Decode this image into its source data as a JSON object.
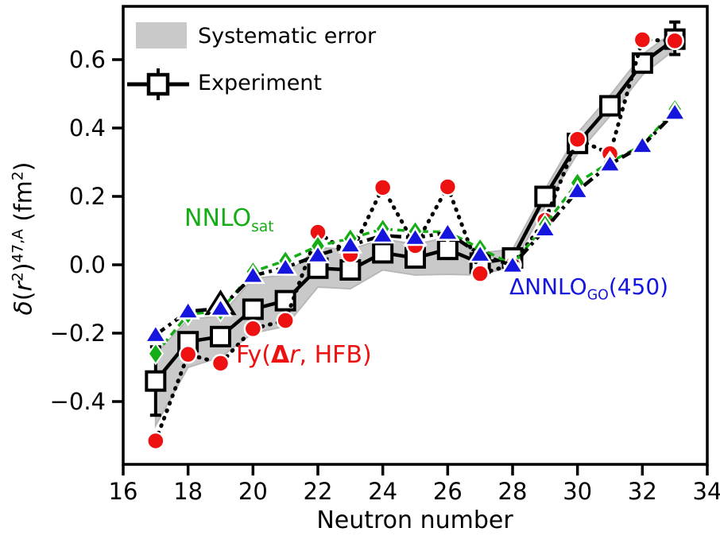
{
  "figure": {
    "colors": {
      "experiment": "#000000",
      "band": "#c9c9c9",
      "band_edge": "#b8b8b8",
      "nnlo_sat": "#15ad15",
      "dnnlo_go": "#1515dd",
      "fy": "#ee1111",
      "axis": "#000000",
      "background": "#ffffff"
    }
  },
  "legend": {
    "systematic_label": "Systematic error",
    "experiment_label": "Experiment"
  },
  "labels": {
    "nnlo": {
      "parts": [
        {
          "t": "NNLO"
        },
        {
          "t": "sat",
          "sub": 1
        }
      ]
    },
    "fy": {
      "parts": [
        {
          "t": "Fy("
        },
        {
          "t": "Δ",
          "b": 1
        },
        {
          "t": "r",
          "i": 1
        },
        {
          "t": ", HFB)"
        }
      ]
    },
    "go": {
      "parts": [
        {
          "t": "ΔNNLO"
        },
        {
          "t": "GO",
          "sub": 1
        },
        {
          "t": "(450)"
        }
      ]
    },
    "ylabel": {
      "parts": [
        {
          "t": "δ",
          "i": 1
        },
        {
          "t": "("
        },
        {
          "t": "r",
          "i": 1
        },
        {
          "t": "2",
          "sup": 1
        },
        {
          "t": ")"
        },
        {
          "t": "47,A",
          "sup": 1
        },
        {
          "t": " (fm"
        },
        {
          "t": "2",
          "sup": 1
        },
        {
          "t": ")"
        }
      ]
    },
    "xlabel": "Neutron number"
  },
  "axes": {
    "xticks": [
      {
        "v": 16,
        "label": "16"
      },
      {
        "v": 18,
        "label": "18"
      },
      {
        "v": 20,
        "label": "20"
      },
      {
        "v": 22,
        "label": "22"
      },
      {
        "v": 24,
        "label": "24"
      },
      {
        "v": 26,
        "label": "26"
      },
      {
        "v": 28,
        "label": "28"
      },
      {
        "v": 30,
        "label": "30"
      },
      {
        "v": 32,
        "label": "32"
      },
      {
        "v": 34,
        "label": "34"
      }
    ],
    "yticks": [
      {
        "v": -0.4,
        "label": "−0.4"
      },
      {
        "v": -0.2,
        "label": "−0.2"
      },
      {
        "v": 0.0,
        "label": "0.0"
      },
      {
        "v": 0.2,
        "label": "0.2"
      },
      {
        "v": 0.4,
        "label": "0.4"
      },
      {
        "v": 0.6,
        "label": "0.6"
      }
    ],
    "xlim": [
      16,
      34
    ],
    "ylim": [
      -0.584,
      0.756
    ]
  },
  "chart_data": {
    "type": "line",
    "title": "",
    "xlabel": "Neutron number",
    "ylabel": "delta<r2>^{47,A} (fm^2)",
    "x": [
      17,
      18,
      19,
      20,
      21,
      22,
      23,
      24,
      25,
      26,
      27,
      28,
      29,
      30,
      31,
      32,
      33
    ],
    "series": [
      {
        "name": "Experiment",
        "marker": "open-square",
        "line": "solid-black",
        "values": [
          -0.34,
          -0.225,
          -0.21,
          -0.13,
          -0.105,
          -0.01,
          -0.015,
          0.035,
          0.02,
          0.045,
          0.005,
          0.02,
          0.2,
          0.355,
          0.465,
          0.59,
          0.66
        ]
      },
      {
        "name": "NNLO_sat",
        "marker": "green-diamond",
        "line": "dashed-green",
        "values": [
          -0.26,
          -0.145,
          -0.135,
          -0.02,
          0.012,
          0.055,
          0.077,
          0.105,
          0.098,
          0.096,
          0.048,
          0.0,
          0.118,
          0.24,
          0.3,
          0.35,
          0.455
        ]
      },
      {
        "name": "DeltaNNLO_GO(450)",
        "marker": "blue-triangle",
        "line": "dashdot-black",
        "values": [
          -0.205,
          -0.136,
          -0.128,
          -0.032,
          -0.008,
          0.028,
          0.057,
          0.086,
          0.079,
          0.094,
          0.03,
          -0.002,
          0.104,
          0.216,
          0.294,
          0.348,
          0.445
        ]
      },
      {
        "name": "Fy(Delta r, HFB)",
        "marker": "red-circle",
        "line": "dotted-black",
        "values": [
          -0.515,
          -0.262,
          -0.288,
          -0.187,
          -0.163,
          0.095,
          0.03,
          0.226,
          0.056,
          0.228,
          -0.026,
          0.0,
          0.13,
          0.367,
          0.325,
          0.658,
          0.655
        ]
      }
    ],
    "systematic_band": {
      "upper": [
        -0.26,
        -0.16,
        -0.15,
        -0.04,
        -0.03,
        0.05,
        0.045,
        0.075,
        0.06,
        0.08,
        0.035,
        0.045,
        0.22,
        0.385,
        0.495,
        0.615,
        0.685
      ],
      "lower": [
        -0.47,
        -0.3,
        -0.27,
        -0.2,
        -0.18,
        -0.065,
        -0.07,
        -0.015,
        -0.03,
        -0.028,
        -0.03,
        -0.005,
        0.17,
        0.325,
        0.435,
        0.555,
        0.63
      ]
    },
    "errorbars": [
      {
        "x": 17,
        "lo": -0.44,
        "hi": -0.24
      },
      {
        "x": 33,
        "lo": 0.615,
        "hi": 0.71
      }
    ],
    "extra_markers": [
      {
        "x": 19,
        "v": -0.115,
        "marker": "open-triangle"
      }
    ],
    "legend_position": "upper-left",
    "grid": false
  }
}
